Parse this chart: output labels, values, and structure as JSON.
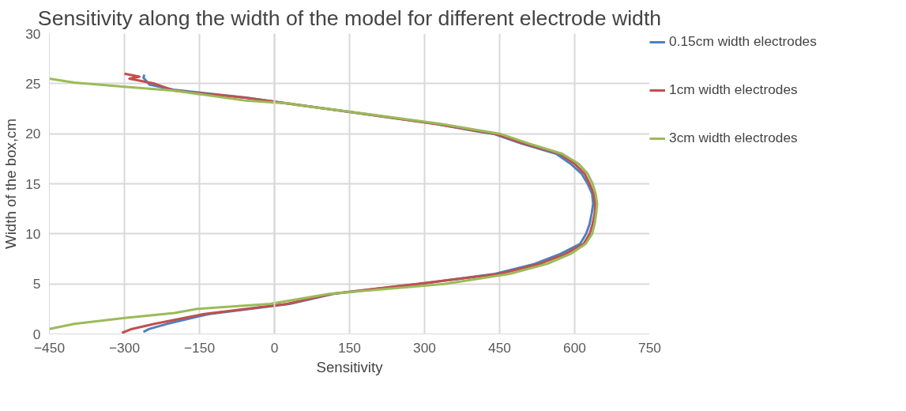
{
  "chart_data": {
    "type": "line",
    "title": "Sensitivity along the width of the model for different electrode width",
    "xlabel": "Sensitivity",
    "ylabel": "Width of the box,cm",
    "xlim": [
      -450,
      750
    ],
    "xticks": [
      -450,
      -300,
      -150,
      0,
      150,
      300,
      450,
      600,
      750
    ],
    "ylim": [
      0,
      30
    ],
    "yticks": [
      0,
      5,
      10,
      15,
      20,
      25,
      30
    ],
    "grid": true,
    "legend": "right",
    "line_style": "solid",
    "marker": "none",
    "series": [
      {
        "name": "0.15cm width electrodes",
        "color": "#4f81bd",
        "x": [
          -262,
          -258,
          -250,
          -215,
          -130,
          30,
          118,
          290,
          441,
          520,
          572,
          611,
          623,
          630,
          634,
          637,
          635,
          626,
          614,
          592,
          563,
          495,
          437,
          408,
          320,
          175,
          30,
          -57,
          -202,
          -250,
          -262,
          -260
        ],
        "values": [
          0.2,
          0.3,
          0.5,
          1,
          2,
          3,
          4,
          5,
          6,
          7,
          8,
          9,
          10,
          11,
          12,
          13,
          14,
          15,
          16,
          17,
          18,
          19,
          20,
          20.2,
          21,
          22,
          23,
          23.6,
          24.4,
          24.9,
          25.6,
          25.9
        ]
      },
      {
        "name": "1cm width electrodes",
        "color": "#c0504d",
        "x": [
          -305,
          -285,
          -240,
          -140,
          25,
          115,
          285,
          450,
          530,
          582,
          618,
          630,
          636,
          640,
          641,
          638,
          630,
          620,
          600,
          570,
          500,
          440,
          320,
          175,
          30,
          -60,
          -200,
          -240,
          -290,
          -270,
          -300
        ],
        "values": [
          0.1,
          0.5,
          1,
          2,
          3,
          4,
          5,
          6,
          7,
          8,
          9,
          10,
          11,
          12,
          13,
          14,
          15,
          16,
          17,
          18,
          19,
          20,
          21,
          22,
          23,
          23.6,
          24.3,
          25,
          25.5,
          25.7,
          26
        ]
      },
      {
        "name": "3cm width electrodes",
        "color": "#9bbb59",
        "x": [
          -450,
          -400,
          -299,
          -200,
          -154,
          -9,
          110,
          340,
          470,
          545,
          592,
          622,
          635,
          640,
          643,
          645,
          642,
          636,
          626,
          608,
          575,
          510,
          450,
          330,
          180,
          40,
          35,
          -57,
          -200,
          -300,
          -400,
          -450
        ],
        "values": [
          0.5,
          1,
          1.6,
          2.1,
          2.5,
          3,
          4,
          5,
          6,
          7,
          8,
          9,
          10,
          11,
          12,
          13,
          14,
          15,
          16,
          17,
          18,
          19,
          20,
          21,
          22,
          22.9,
          23,
          23.3,
          24.3,
          24.7,
          25.1,
          25.5
        ]
      }
    ]
  }
}
